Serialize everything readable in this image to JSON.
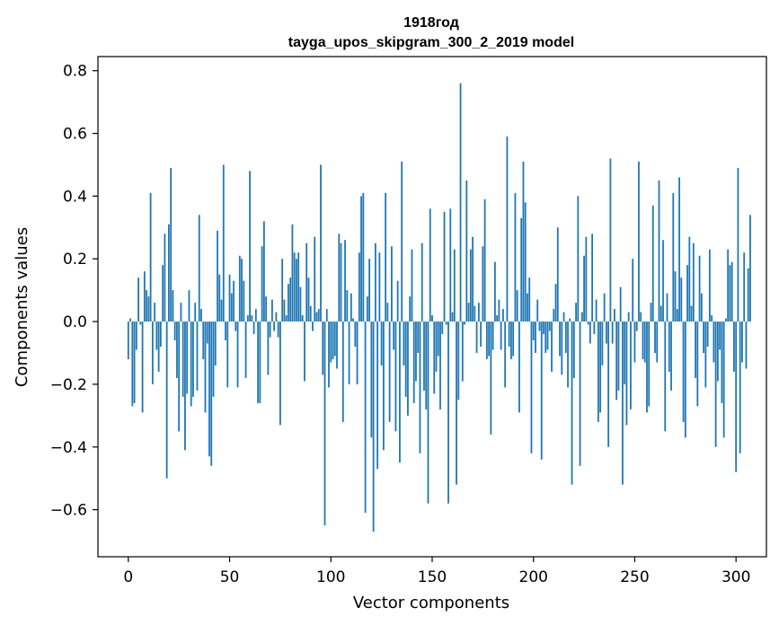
{
  "chart_data": {
    "type": "bar",
    "title_line1": "1918год",
    "title_line2": "tayga_upos_skipgram_300_2_2019 model",
    "xlabel": "Vector components",
    "ylabel": "Components values",
    "xlim": [
      -15,
      315
    ],
    "ylim": [
      -0.75,
      0.845
    ],
    "xticks": [
      0,
      50,
      100,
      150,
      200,
      250,
      300
    ],
    "xtick_labels": [
      "0",
      "50",
      "100",
      "150",
      "200",
      "250",
      "300"
    ],
    "yticks": [
      0.8,
      0.6,
      0.4,
      0.2,
      0.0,
      -0.2,
      -0.4,
      -0.6
    ],
    "ytick_labels": [
      "0.8",
      "0.6",
      "0.4",
      "0.2",
      "0.0",
      "−0.2",
      "−0.4",
      "−0.6"
    ],
    "grid": false,
    "bar_color": "#1f77b4",
    "values": [
      -0.12,
      0.01,
      -0.27,
      -0.26,
      -0.09,
      0.14,
      -0.01,
      -0.29,
      0.16,
      0.1,
      0.08,
      0.41,
      -0.2,
      0.06,
      -0.09,
      -0.16,
      -0.08,
      0.18,
      0.28,
      -0.5,
      0.31,
      0.49,
      0.1,
      -0.06,
      -0.18,
      -0.35,
      0.06,
      -0.24,
      -0.41,
      -0.23,
      0.1,
      -0.27,
      -0.24,
      0.06,
      -0.22,
      0.34,
      0.04,
      -0.12,
      -0.29,
      -0.07,
      -0.43,
      -0.46,
      -0.24,
      -0.14,
      0.29,
      0.15,
      0.07,
      0.5,
      -0.06,
      -0.21,
      0.15,
      0.09,
      0.13,
      -0.03,
      -0.21,
      0.21,
      0.2,
      0.13,
      -0.18,
      0.02,
      0.48,
      0.02,
      -0.04,
      0.04,
      -0.26,
      -0.26,
      0.24,
      0.32,
      0.08,
      -0.17,
      -0.05,
      0.07,
      -0.03,
      0.03,
      -0.05,
      -0.33,
      0.2,
      0.07,
      0.02,
      0.12,
      0.14,
      0.31,
      0.22,
      0.2,
      0.22,
      0.11,
      0.02,
      -0.19,
      0.25,
      0.14,
      0.05,
      -0.03,
      0.27,
      0.03,
      0.04,
      0.5,
      -0.17,
      -0.65,
      0.04,
      -0.21,
      -0.13,
      -0.12,
      -0.11,
      -0.15,
      0.28,
      0.25,
      -0.32,
      0.26,
      0.1,
      -0.2,
      0.09,
      0.01,
      -0.08,
      -0.2,
      0.22,
      0.4,
      0.41,
      -0.61,
      0.08,
      0.2,
      -0.37,
      -0.67,
      0.25,
      -0.47,
      0.22,
      -0.14,
      -0.41,
      0.41,
      0.06,
      -0.32,
      0.24,
      -0.09,
      -0.35,
      0.13,
      -0.45,
      0.51,
      -0.14,
      -0.24,
      -0.3,
      0.08,
      0.23,
      -0.26,
      -0.19,
      -0.1,
      -0.42,
      0.25,
      -0.22,
      -0.28,
      -0.58,
      0.36,
      0.02,
      -0.23,
      -0.16,
      -0.11,
      -0.28,
      -0.04,
      0.35,
      -0.01,
      -0.58,
      0.36,
      0.03,
      0.23,
      -0.52,
      -0.25,
      0.76,
      -0.19,
      -0.01,
      0.45,
      0.06,
      0.23,
      0.27,
      0.05,
      -0.1,
      0.06,
      -0.08,
      0.24,
      0.39,
      -0.12,
      -0.11,
      -0.36,
      -0.09,
      0.19,
      0.02,
      0.07,
      -0.09,
      0.04,
      -0.21,
      0.59,
      -0.08,
      -0.12,
      -0.11,
      0.41,
      0.1,
      -0.29,
      0.33,
      0.51,
      0.38,
      0.09,
      0.14,
      -0.42,
      -0.06,
      -0.1,
      0.07,
      -0.03,
      -0.44,
      -0.04,
      -0.1,
      -0.09,
      -0.03,
      -0.16,
      0.04,
      0.12,
      0.3,
      -0.11,
      -0.17,
      0.03,
      -0.1,
      -0.21,
      0.01,
      -0.52,
      -0.18,
      0.06,
      0.4,
      -0.46,
      0.03,
      0.21,
      0.27,
      -0.01,
      -0.07,
      0.28,
      -0.04,
      0.07,
      -0.32,
      -0.29,
      -0.14,
      0.09,
      -0.07,
      -0.4,
      0.52,
      -0.07,
      0.04,
      -0.25,
      -0.22,
      0.11,
      -0.52,
      -0.2,
      -0.33,
      0.03,
      -0.28,
      0.2,
      -0.13,
      -0.03,
      0.51,
      0.03,
      -0.12,
      -0.13,
      -0.29,
      -0.27,
      0.06,
      0.37,
      -0.1,
      -0.13,
      0.45,
      0.05,
      0.26,
      -0.35,
      0.09,
      -0.16,
      -0.22,
      0.41,
      0.16,
      0.04,
      0.46,
      0.14,
      -0.32,
      -0.37,
      0.18,
      0.27,
      0.05,
      0.25,
      -0.18,
      -0.27,
      0.21,
      0.09,
      -0.1,
      -0.21,
      -0.08,
      0.23,
      0.02,
      -0.13,
      -0.4,
      -0.19,
      -0.09,
      -0.26,
      -0.37,
      0.01,
      0.23,
      0.18,
      0.19,
      -0.16,
      -0.48,
      0.49,
      -0.42,
      -0.13,
      0.22,
      -0.15,
      0.17,
      0.34
    ]
  }
}
